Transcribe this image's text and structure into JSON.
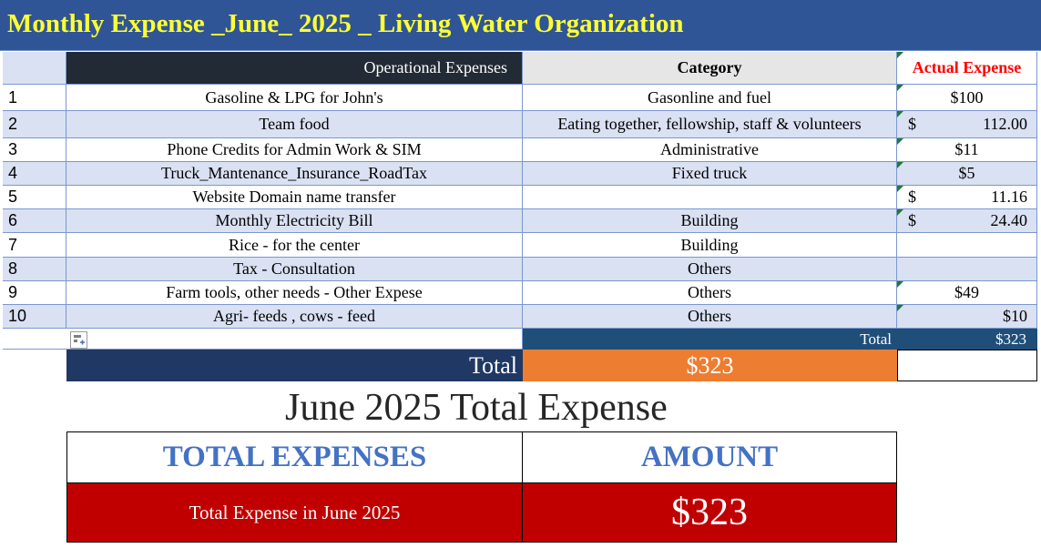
{
  "title": "Monthly Expense _June_ 2025 _ Living Water Organization",
  "colors": {
    "banner": "#2f5597",
    "banner_text": "#ffff33",
    "row_band": "#d9e1f2",
    "header_dark": "#222a35",
    "total_orange": "#ed7d31",
    "summary_red": "#c00000",
    "summary_head_text": "#4472c4"
  },
  "table": {
    "headers": {
      "operational": "Operational Expenses",
      "category": "Category",
      "actual": "Actual Expense"
    },
    "rows": [
      {
        "num": "1",
        "expense": "Gasoline & LPG for John's",
        "category": "Gasonline and fuel",
        "amount": "$100",
        "currency": "",
        "amount_style": "center"
      },
      {
        "num": "2",
        "expense": "Team food",
        "category": "Eating together, fellowship, staff & volunteers",
        "amount": "112.00",
        "currency": "$",
        "amount_style": "split"
      },
      {
        "num": "3",
        "expense": "Phone Credits for Admin Work & SIM",
        "category": "Administrative",
        "amount": "$11",
        "currency": "",
        "amount_style": "center"
      },
      {
        "num": "4",
        "expense": "Truck_Mantenance_Insurance_RoadTax",
        "category": "Fixed truck",
        "amount": "$5",
        "currency": "",
        "amount_style": "center"
      },
      {
        "num": "5",
        "expense": "Website Domain name transfer",
        "category": "",
        "amount": "11.16",
        "currency": "$",
        "amount_style": "split"
      },
      {
        "num": "6",
        "expense": "Monthly Electricity Bill",
        "category": "Building",
        "amount": "24.40",
        "currency": "$",
        "amount_style": "split"
      },
      {
        "num": "7",
        "expense": "Rice - for the center",
        "category": "Building",
        "amount": "",
        "currency": "",
        "amount_style": "center"
      },
      {
        "num": "8",
        "expense": "Tax - Consultation",
        "category": "Others",
        "amount": "",
        "currency": "",
        "amount_style": "center"
      },
      {
        "num": "9",
        "expense": "Farm tools, other needs  - Other Expese",
        "category": "Others",
        "amount": "$49",
        "currency": "",
        "amount_style": "center"
      },
      {
        "num": "10",
        "expense": "Agri- feeds , cows - feed",
        "category": "Others",
        "amount": "$10",
        "currency": "",
        "amount_style": "right"
      }
    ],
    "total_label": "Total",
    "total_value": "$323"
  },
  "grand_total": {
    "label": "Total",
    "value": "$323"
  },
  "summary": {
    "title": "June 2025 Total Expense",
    "col1_header": "TOTAL EXPENSES",
    "col2_header": "AMOUNT",
    "row_label": "Total Expense in June 2025",
    "row_value": "$323"
  }
}
